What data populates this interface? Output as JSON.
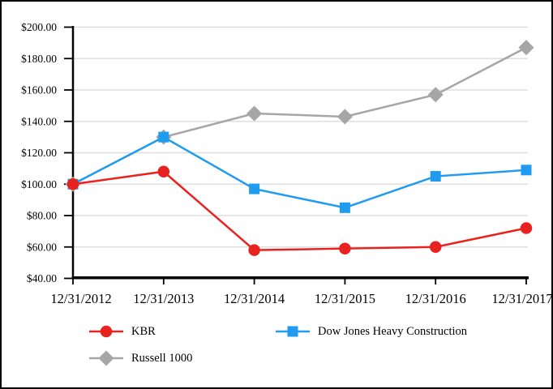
{
  "chart_data": {
    "type": "line",
    "title": "",
    "xlabel": "",
    "ylabel": "",
    "x_labels": [
      "12/31/2012",
      "12/31/2013",
      "12/31/2014",
      "12/31/2015",
      "12/31/2016",
      "12/31/2017"
    ],
    "y_tick_labels": [
      "$200.00",
      "$180.00",
      "$160.00",
      "$140.00",
      "$120.00",
      "$100.00",
      "$80.00",
      "$60.00",
      "$40.00"
    ],
    "ylim": [
      40,
      200
    ],
    "ytick_step": 20,
    "grid": true,
    "legend_position": "bottom",
    "series": [
      {
        "name": "KBR",
        "marker": "circle",
        "color": "#e8231f",
        "values": [
          100,
          108,
          58,
          59,
          60,
          72
        ]
      },
      {
        "name": "Dow Jones Heavy Construction",
        "marker": "square",
        "color": "#1f9bf0",
        "values": [
          100,
          130,
          97,
          85,
          105,
          109
        ]
      },
      {
        "name": "Russell 1000",
        "marker": "diamond",
        "color": "#a6a6a6",
        "values": [
          100,
          130,
          145,
          143,
          157,
          187
        ]
      }
    ],
    "colors": {
      "grid": "#dfdfdf",
      "axis": "#000000",
      "text": "#000000",
      "background": "#ffffff",
      "border": "#000000"
    }
  }
}
